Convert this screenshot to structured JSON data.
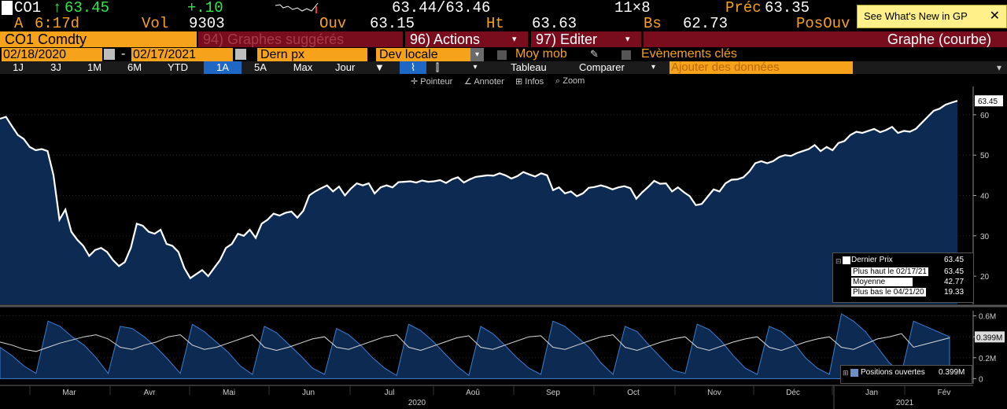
{
  "ticker": {
    "symbol": "CO1",
    "arrow": "↑",
    "last": "63.45",
    "change": "+.10",
    "bid_ask": "63.44/63.46",
    "size": "11×8",
    "prev_label": "Préc",
    "prev_value": "63.35",
    "row2_prefix": "A",
    "time": "6:17d",
    "vol_label": "Vol",
    "vol_value": "9303",
    "open_label": "Ouv",
    "open_value": "63.15",
    "high_label": "Ht",
    "high_value": "63.63",
    "low_label": "Bs",
    "low_value": "62.73",
    "pos_label": "PosOuv"
  },
  "whats_new": {
    "label": "See What's New in GP",
    "close": "✕"
  },
  "cmdbar": {
    "security": "CO1 Comdty",
    "suggested": "94) Graphes suggérés",
    "actions": "96) Actions",
    "edit": "97) Editer",
    "chart_type": "Graphe (courbe)"
  },
  "range": {
    "start": "02/18/2020",
    "sep": "-",
    "end": "02/17/2021",
    "field": "Dern px",
    "currency": "Dev locale",
    "moving_avg": "Moy mob",
    "events": "Evènements clés"
  },
  "periods": [
    "1J",
    "3J",
    "1M",
    "6M",
    "YTD",
    "1A",
    "5A",
    "Max"
  ],
  "selected_period": "1A",
  "freq": "Jour",
  "table_label": "Tableau",
  "compare_label": "Comparer",
  "add_data_placeholder": "Ajouter des données",
  "tools": {
    "pointer": "Pointeur",
    "annotate": "Annoter",
    "info": "Infos",
    "zoom": "Zoom"
  },
  "colors": {
    "accent": "#f6a21b",
    "up": "#2ee84a",
    "panel_red": "#7a0d1d",
    "area": "#0d2a52",
    "period_selected": "#1f67c5"
  },
  "legend": {
    "rows": [
      {
        "label": "Dernier Prix",
        "value": "63.45"
      },
      {
        "label": "Plus haut le 02/17/21",
        "value": "63.45"
      },
      {
        "label": "Moyenne",
        "value": "42.77"
      },
      {
        "label": "Plus bas le 04/21/20",
        "value": "19.33"
      }
    ],
    "lower": {
      "label": "Positions ouvertes",
      "value": "0.399M"
    }
  },
  "chart_data": {
    "type": "area",
    "price_axis": {
      "ticks": [
        20,
        30,
        40,
        50,
        60
      ],
      "ylim": [
        13,
        67
      ],
      "last_label": "63.45"
    },
    "oi_axis": {
      "ticks": [
        "0",
        "0.2M",
        "0.4M",
        "0.6M"
      ],
      "tick_values": [
        0,
        0.2,
        0.4,
        0.6
      ],
      "ylim": [
        -0.05,
        0.65
      ],
      "last_label": "0.399M"
    },
    "x_labels": [
      "Mar",
      "Avr",
      "Mai",
      "Jun",
      "Jul",
      "Aoû",
      "Sep",
      "Oct",
      "Nov",
      "Déc",
      "Jan",
      "Fév"
    ],
    "year_labels": [
      "2020",
      "2021"
    ],
    "price_series": {
      "name": "Dernier Prix",
      "values": [
        59.0,
        59.5,
        57.2,
        55.0,
        54.0,
        52.0,
        51.2,
        51.5,
        51.0,
        45.0,
        34.0,
        36.5,
        31.0,
        29.0,
        27.5,
        25.0,
        26.5,
        27.0,
        26.0,
        24.0,
        22.5,
        23.5,
        27.0,
        33.0,
        32.5,
        31.0,
        30.5,
        31.5,
        28.0,
        27.5,
        26.0,
        22.0,
        19.5,
        20.5,
        21.5,
        20.0,
        22.0,
        24.0,
        27.0,
        28.0,
        30.5,
        30.0,
        31.5,
        29.5,
        33.0,
        34.0,
        35.5,
        35.0,
        35.7,
        36.0,
        34.5,
        36.2,
        40.0,
        41.0,
        41.8,
        42.5,
        41.0,
        42.2,
        40.0,
        41.7,
        43.0,
        42.5,
        43.0,
        40.5,
        42.0,
        42.5,
        42.0,
        43.3,
        43.4,
        43.5,
        43.2,
        43.7,
        43.4,
        43.5,
        43.8,
        43.1,
        44.0,
        44.5,
        43.2,
        44.0,
        44.6,
        44.8,
        45.0,
        44.9,
        45.5,
        45.0,
        44.2,
        44.8,
        45.8,
        45.2,
        44.7,
        45.5,
        45.0,
        41.3,
        42.0,
        40.5,
        41.0,
        39.8,
        40.5,
        41.9,
        42.1,
        42.5,
        42.1,
        41.5,
        42.0,
        42.3,
        41.8,
        39.2,
        40.8,
        42.1,
        43.6,
        42.9,
        43.0,
        41.0,
        42.0,
        40.8,
        39.8,
        37.6,
        37.9,
        39.7,
        41.5,
        41.0,
        43.0,
        43.9,
        44.0,
        44.5,
        45.9,
        48.0,
        48.5,
        48.0,
        48.5,
        49.5,
        50.0,
        49.8,
        50.5,
        51.0,
        51.5,
        52.5,
        51.0,
        52.0,
        51.2,
        53.0,
        53.5,
        55.0,
        55.8,
        55.5,
        56.0,
        56.5,
        55.7,
        56.2,
        57.0,
        55.5,
        56.0,
        55.8,
        56.5,
        58.0,
        59.5,
        61.0,
        61.5,
        62.5,
        63.0,
        63.45
      ]
    },
    "oi_series": {
      "name": "Positions ouvertes",
      "values_M": [
        0.3,
        0.22,
        0.12,
        0.05,
        0.55,
        0.5,
        0.4,
        0.32,
        0.2,
        0.05,
        0.5,
        0.48,
        0.4,
        0.3,
        0.18,
        0.05,
        0.52,
        0.45,
        0.35,
        0.25,
        0.12,
        0.04,
        0.5,
        0.44,
        0.33,
        0.22,
        0.1,
        0.04,
        0.48,
        0.42,
        0.32,
        0.2,
        0.1,
        0.03,
        0.52,
        0.46,
        0.36,
        0.24,
        0.12,
        0.03,
        0.5,
        0.43,
        0.32,
        0.2,
        0.1,
        0.04,
        0.55,
        0.5,
        0.4,
        0.3,
        0.15,
        0.04,
        0.5,
        0.45,
        0.32,
        0.2,
        0.08,
        0.05,
        0.52,
        0.47,
        0.36,
        0.22,
        0.1,
        0.04,
        0.5,
        0.45,
        0.35,
        0.2,
        0.1,
        0.04,
        0.62,
        0.55,
        0.45,
        0.3,
        0.15,
        0.05,
        0.55,
        0.5,
        0.45,
        0.4
      ]
    },
    "moving_avg_series": {
      "values_M": [
        0.35,
        0.32,
        0.28,
        0.26,
        0.3,
        0.34,
        0.37,
        0.4,
        0.42,
        0.38,
        0.3,
        0.28,
        0.32,
        0.35,
        0.4,
        0.42,
        0.32,
        0.28,
        0.3,
        0.34,
        0.38,
        0.42,
        0.3,
        0.27,
        0.3,
        0.34,
        0.38,
        0.4,
        0.3,
        0.28,
        0.32,
        0.36,
        0.4,
        0.42,
        0.3,
        0.27,
        0.31,
        0.35,
        0.39,
        0.41,
        0.3,
        0.28,
        0.32,
        0.36,
        0.4,
        0.41,
        0.3,
        0.28,
        0.32,
        0.36,
        0.4,
        0.42,
        0.3,
        0.27,
        0.31,
        0.35,
        0.38,
        0.4,
        0.3,
        0.27,
        0.31,
        0.35,
        0.38,
        0.4,
        0.3,
        0.27,
        0.31,
        0.35,
        0.38,
        0.4,
        0.3,
        0.28,
        0.33,
        0.38,
        0.4,
        0.43,
        0.3,
        0.33,
        0.36,
        0.39
      ]
    }
  }
}
